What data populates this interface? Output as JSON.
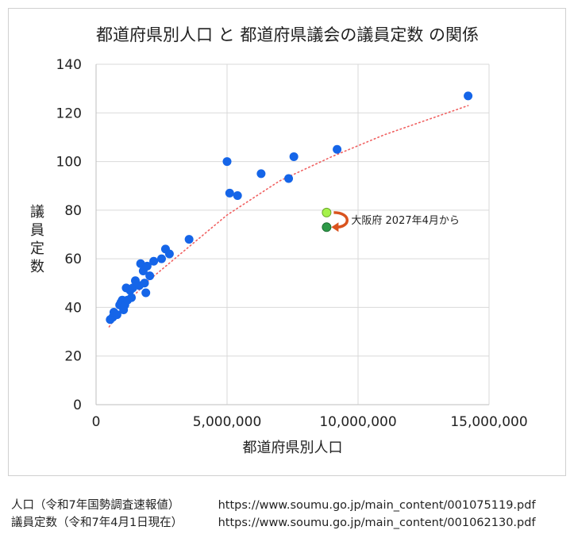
{
  "chart_data": {
    "type": "scatter",
    "title": "都道府県別人口 と 都道府県議会の議員定数 の関係",
    "xlabel": "都道府県別人口",
    "ylabel": "議員定数",
    "xlim": [
      0,
      15000000
    ],
    "ylim": [
      0,
      140
    ],
    "x_ticks": [
      0,
      5000000,
      10000000,
      15000000
    ],
    "x_tick_labels": [
      "0",
      "5,000,000",
      "10,000,000",
      "15,000,000"
    ],
    "y_ticks": [
      0,
      20,
      40,
      60,
      80,
      100,
      120,
      140
    ],
    "y_tick_labels": [
      "0",
      "20",
      "40",
      "60",
      "80",
      "100",
      "120",
      "140"
    ],
    "grid": true,
    "series": [
      {
        "color": "#1565e8",
        "points": [
          {
            "x": 540000,
            "y": 35
          },
          {
            "x": 640000,
            "y": 36
          },
          {
            "x": 680000,
            "y": 38
          },
          {
            "x": 800000,
            "y": 37
          },
          {
            "x": 900000,
            "y": 41
          },
          {
            "x": 950000,
            "y": 42
          },
          {
            "x": 1000000,
            "y": 43
          },
          {
            "x": 1050000,
            "y": 39
          },
          {
            "x": 1100000,
            "y": 41
          },
          {
            "x": 1150000,
            "y": 48
          },
          {
            "x": 1200000,
            "y": 43
          },
          {
            "x": 1300000,
            "y": 47
          },
          {
            "x": 1350000,
            "y": 44
          },
          {
            "x": 1400000,
            "y": 48
          },
          {
            "x": 1500000,
            "y": 51
          },
          {
            "x": 1650000,
            "y": 49
          },
          {
            "x": 1700000,
            "y": 58
          },
          {
            "x": 1800000,
            "y": 55
          },
          {
            "x": 1850000,
            "y": 50
          },
          {
            "x": 1900000,
            "y": 46
          },
          {
            "x": 1950000,
            "y": 57
          },
          {
            "x": 2050000,
            "y": 53
          },
          {
            "x": 2200000,
            "y": 59
          },
          {
            "x": 2500000,
            "y": 60
          },
          {
            "x": 2650000,
            "y": 64
          },
          {
            "x": 2800000,
            "y": 62
          },
          {
            "x": 3550000,
            "y": 68
          },
          {
            "x": 5000000,
            "y": 100
          },
          {
            "x": 5100000,
            "y": 87
          },
          {
            "x": 5400000,
            "y": 86
          },
          {
            "x": 6300000,
            "y": 95
          },
          {
            "x": 7350000,
            "y": 93
          },
          {
            "x": 7550000,
            "y": 102
          },
          {
            "x": 9200000,
            "y": 105
          },
          {
            "x": 14200000,
            "y": 127
          }
        ]
      }
    ],
    "highlight": {
      "before": {
        "x": 8800000,
        "y": 79,
        "color": "#a5f24a"
      },
      "after": {
        "x": 8800000,
        "y": 73,
        "color": "#2e9a48"
      },
      "arrow_color": "#d9531e",
      "label": "大阪府 2027年4月から"
    },
    "trendline": {
      "style": "dotted",
      "color": "#f06060",
      "points": [
        [
          500000,
          32
        ],
        [
          1000000,
          40
        ],
        [
          2000000,
          51
        ],
        [
          3000000,
          60
        ],
        [
          5000000,
          78
        ],
        [
          7000000,
          92
        ],
        [
          9000000,
          102
        ],
        [
          11000000,
          111
        ],
        [
          14200000,
          123
        ]
      ]
    }
  },
  "sources": [
    {
      "label": "人口（令和7年国勢調査速報値）",
      "url": "https://www.soumu.go.jp/main_content/001075119.pdf"
    },
    {
      "label": "議員定数（令和7年4月1日現在）",
      "url": "https://www.soumu.go.jp/main_content/001062130.pdf"
    }
  ]
}
